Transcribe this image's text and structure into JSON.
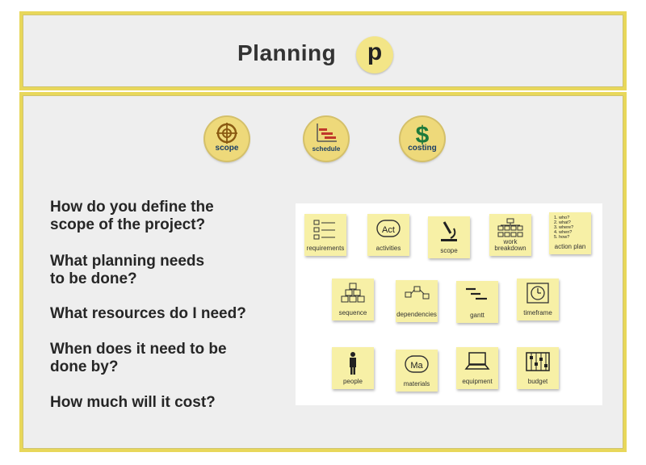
{
  "header": {
    "title": "Planning",
    "badge_letter": "p"
  },
  "phases": [
    {
      "label": "scope",
      "icon": "crosshair-icon"
    },
    {
      "label": "schedule",
      "icon": "schedule-chart-icon"
    },
    {
      "label": "costing",
      "icon": "dollar-icon"
    }
  ],
  "questions": [
    "How do you define the",
    "scope of the project?",
    "What planning needs",
    "to be done?",
    "What resources do I need?",
    "When does it need to be",
    "done by?",
    "How much will it cost?"
  ],
  "notes": {
    "row1": [
      "requirements",
      "activities",
      "scope",
      "work",
      "breakdown",
      "action plan"
    ],
    "row2": [
      "sequence",
      "dependencies",
      "gantt",
      "timeframe"
    ],
    "row3": [
      "people",
      "materials",
      "equipment",
      "budget"
    ],
    "icon_text": {
      "act": "Act",
      "ma": "Ma"
    },
    "action_plan_list": [
      "1. who?",
      "2. what?",
      "3. where?",
      "4. when?",
      "5. how?"
    ]
  },
  "colors": {
    "frame": "#e8d75a",
    "note": "#f7f0a6",
    "badge": "#f3e587",
    "phase_label": "#1a3e66"
  }
}
